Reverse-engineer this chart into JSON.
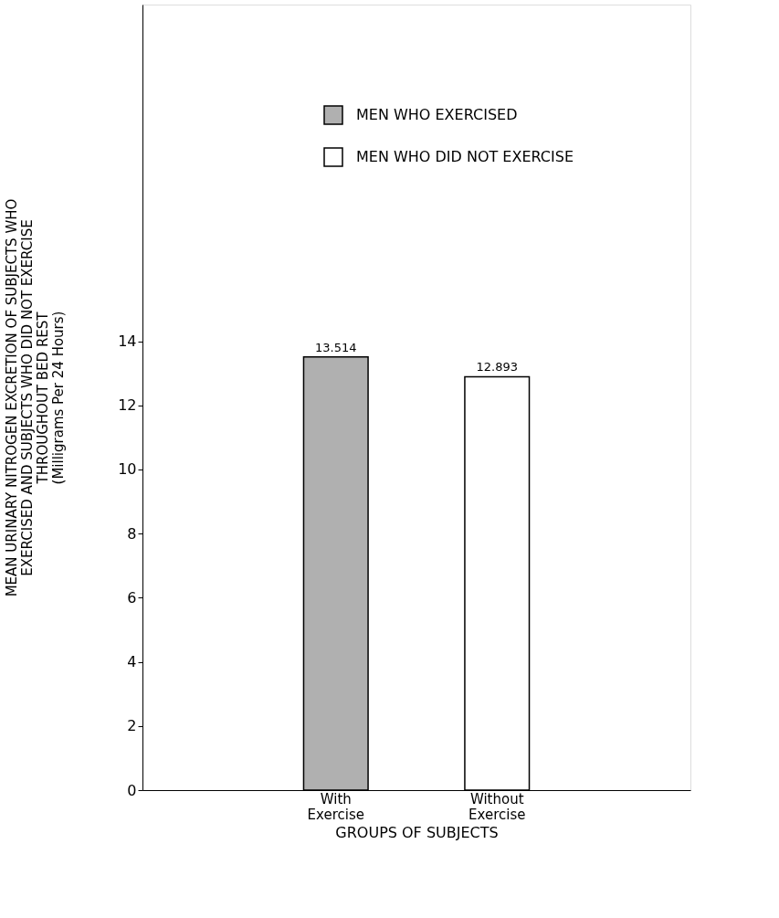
{
  "chart_data": {
    "type": "bar",
    "xlabel": "GROUPS OF SUBJECTS",
    "ylabel": "MEAN URINARY NITROGEN EXCRETION OF SUBJECTS WHO\nEXERCISED AND SUBJECTS WHO DID NOT EXERCISE\nTHROUGHOUT BED REST\n\n(Milligrams Per 24 Hours)",
    "categories": [
      "With\nExercise",
      "Without\nExercise"
    ],
    "series": [
      {
        "name": "MEN WHO EXERCISED",
        "color": "#b0b0b0",
        "values": [
          13.514,
          null
        ]
      },
      {
        "name": "MEN WHO DID NOT EXERCISE",
        "color": "#ffffff",
        "values": [
          null,
          12.893
        ]
      }
    ],
    "ylim": [
      0,
      24.5
    ],
    "yticks": [
      0,
      2,
      4,
      6,
      8,
      10,
      12,
      14
    ],
    "data_labels": true,
    "legend": "top",
    "grid": false
  }
}
